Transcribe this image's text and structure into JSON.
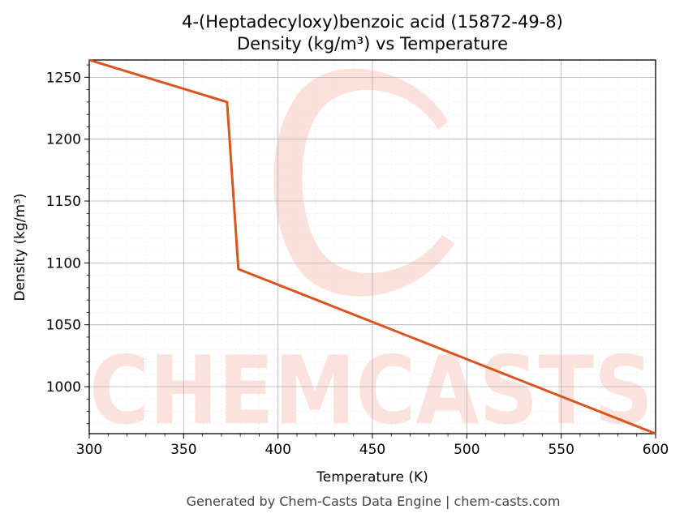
{
  "chart_data": {
    "type": "line",
    "title_line1": "4-(Heptadecyloxy)benzoic acid (15872-49-8)",
    "title_line2": "Density (kg/m³) vs Temperature",
    "xlabel": "Temperature (K)",
    "ylabel": "Density (kg/m³)",
    "xlim": [
      300,
      600
    ],
    "ylim": [
      962,
      1264
    ],
    "x_ticks": [
      300,
      350,
      400,
      450,
      500,
      550,
      600
    ],
    "y_ticks": [
      1000,
      1050,
      1100,
      1150,
      1200,
      1250
    ],
    "grid": true,
    "series": [
      {
        "color": "#d9541e",
        "x": [
          300,
          373,
          379,
          600
        ],
        "y": [
          1264,
          1230,
          1095,
          962
        ]
      }
    ]
  },
  "watermark": {
    "text": "CHEMCASTS",
    "color": "#fbd9d2"
  },
  "footer": "Generated by Chem-Casts Data Engine | chem-casts.com"
}
